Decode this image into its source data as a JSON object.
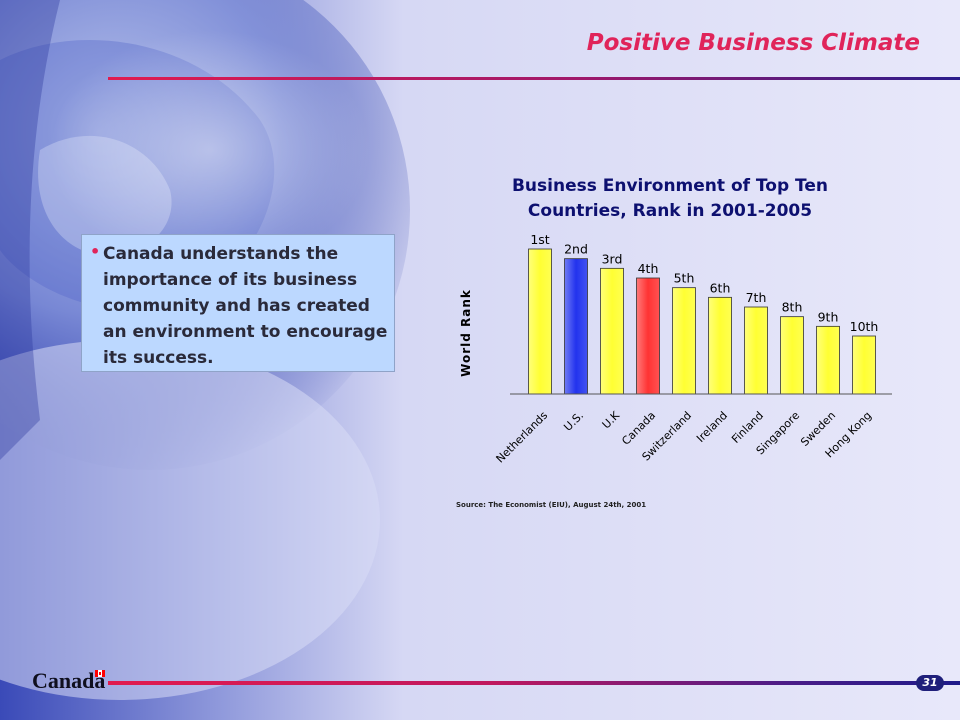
{
  "slide": {
    "title": "Positive Business Climate",
    "bullet": "Canada understands the importance of its business community and has created an environment to encourage its success.",
    "footer_logo": "Canada",
    "page_number": "31"
  },
  "colors": {
    "accent": "#e0245a",
    "bar_default": "#ffff33",
    "bar_us": "#2233ee",
    "bar_canada": "#ff3333",
    "title_navy": "#0d1070"
  },
  "chart_data": {
    "type": "bar",
    "title": "Business Environment of Top Ten Countries, Rank in 2001-2005",
    "title_lines": [
      "Business Environment of Top Ten",
      "Countries, Rank in 2001-2005"
    ],
    "xlabel": "",
    "ylabel": "World Rank",
    "categories": [
      "Netherlands",
      "U.S.",
      "U.K",
      "Canada",
      "Switzerland",
      "Ireland",
      "Finland",
      "Singapore",
      "Sweden",
      "Hong Kong"
    ],
    "values": [
      1,
      2,
      3,
      4,
      5,
      6,
      7,
      8,
      9,
      10
    ],
    "data_labels": [
      "1st",
      "2nd",
      "3rd",
      "4th",
      "5th",
      "6th",
      "7th",
      "8th",
      "9th",
      "10th"
    ],
    "bar_colors": [
      "#ffff33",
      "#2233ee",
      "#ffff33",
      "#ff3333",
      "#ffff33",
      "#ffff33",
      "#ffff33",
      "#ffff33",
      "#ffff33",
      "#ffff33"
    ],
    "source": "Source: The Economist (EIU), August 24th, 2001",
    "grid": false,
    "legend": "none"
  }
}
